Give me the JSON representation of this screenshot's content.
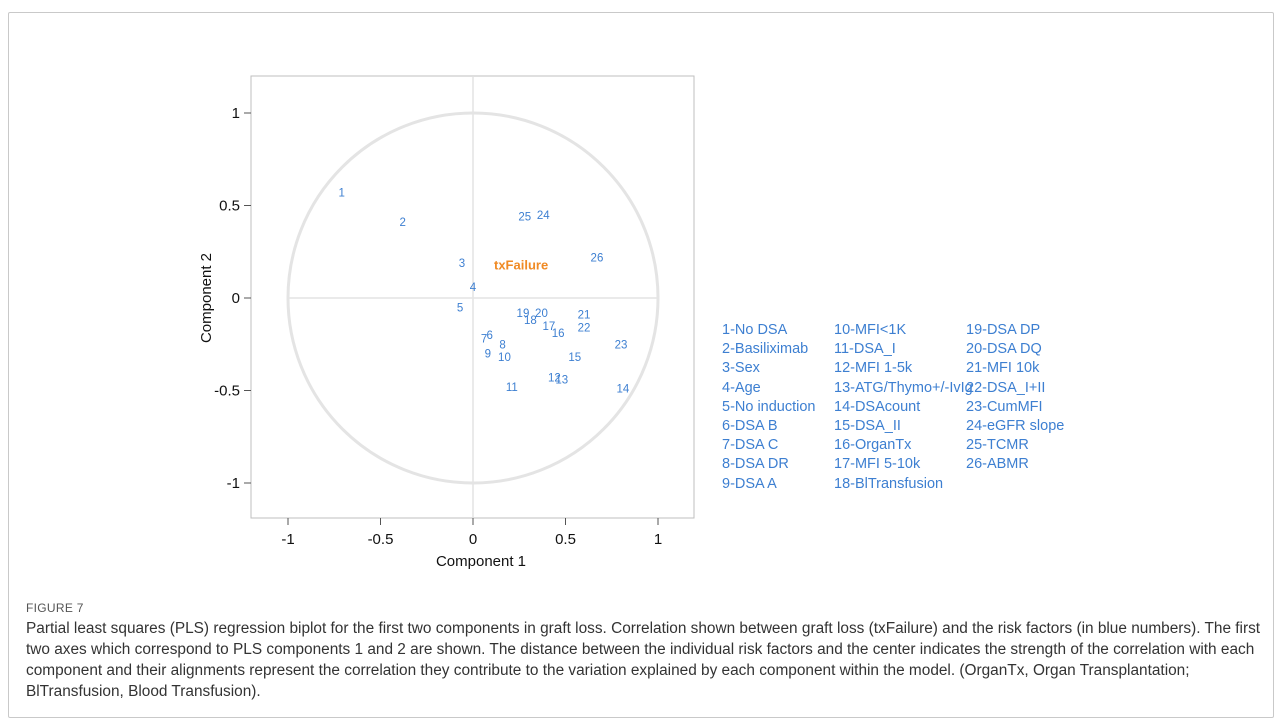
{
  "chart_data": {
    "type": "scatter",
    "xlabel": "Component 1",
    "ylabel": "Component 2",
    "xlim": [
      -1.2,
      1.2
    ],
    "ylim": [
      -1.2,
      1.2
    ],
    "xticks": [
      -1,
      -0.5,
      0,
      0.5,
      1
    ],
    "yticks": [
      -1,
      -0.5,
      0,
      0.5,
      1
    ],
    "tick_labels_x": [
      "-1",
      "-0.5",
      "0",
      "0.5",
      "1"
    ],
    "tick_labels_y": [
      "-1",
      "-0.5",
      "0",
      "0.5",
      "1"
    ],
    "grid": false,
    "reference_circle_radius": 1,
    "point_color": "#3d7fd1",
    "response_color": "#f08a24",
    "points": [
      {
        "label": "1",
        "x": -0.71,
        "y": 0.57
      },
      {
        "label": "2",
        "x": -0.38,
        "y": 0.41
      },
      {
        "label": "3",
        "x": -0.06,
        "y": 0.19
      },
      {
        "label": "4",
        "x": 0.0,
        "y": 0.06
      },
      {
        "label": "5",
        "x": -0.07,
        "y": -0.05
      },
      {
        "label": "6",
        "x": 0.09,
        "y": -0.2
      },
      {
        "label": "7",
        "x": 0.06,
        "y": -0.22
      },
      {
        "label": "8",
        "x": 0.16,
        "y": -0.25
      },
      {
        "label": "9",
        "x": 0.08,
        "y": -0.3
      },
      {
        "label": "10",
        "x": 0.17,
        "y": -0.32
      },
      {
        "label": "11",
        "x": 0.21,
        "y": -0.48
      },
      {
        "label": "12",
        "x": 0.44,
        "y": -0.43
      },
      {
        "label": "13",
        "x": 0.48,
        "y": -0.44
      },
      {
        "label": "14",
        "x": 0.81,
        "y": -0.49
      },
      {
        "label": "15",
        "x": 0.55,
        "y": -0.32
      },
      {
        "label": "16",
        "x": 0.46,
        "y": -0.19
      },
      {
        "label": "17",
        "x": 0.41,
        "y": -0.15
      },
      {
        "label": "18",
        "x": 0.31,
        "y": -0.12
      },
      {
        "label": "19",
        "x": 0.27,
        "y": -0.08
      },
      {
        "label": "20",
        "x": 0.37,
        "y": -0.08
      },
      {
        "label": "21",
        "x": 0.6,
        "y": -0.09
      },
      {
        "label": "22",
        "x": 0.6,
        "y": -0.16
      },
      {
        "label": "23",
        "x": 0.8,
        "y": -0.25
      },
      {
        "label": "24",
        "x": 0.38,
        "y": 0.45
      },
      {
        "label": "25",
        "x": 0.28,
        "y": 0.44
      },
      {
        "label": "26",
        "x": 0.67,
        "y": 0.22
      }
    ],
    "response": {
      "label": "txFailure",
      "x": 0.26,
      "y": 0.18
    },
    "legend": [
      [
        "1-No DSA",
        "2-Basiliximab",
        "3-Sex",
        "4-Age",
        "5-No induction",
        "6-DSA B",
        "7-DSA C",
        "8-DSA DR",
        "9-DSA A"
      ],
      [
        "10-MFI<1K",
        "11-DSA_I",
        "12-MFI 1-5k",
        "13-ATG/Thymo+/-IvIg",
        "14-DSAcount",
        "15-DSA_II",
        "16-OrganTx",
        "17-MFI 5-10k",
        "18-BlTransfusion"
      ],
      [
        "19-DSA DP",
        "20-DSA DQ",
        "21-MFI 10k",
        "22-DSA_I+II",
        "23-CumMFI",
        "24-eGFR slope",
        "25-TCMR",
        "26-ABMR"
      ]
    ]
  },
  "figure_label": "FIGURE 7",
  "caption": "Partial least squares (PLS) regression biplot for the first two components in graft loss. Correlation shown between graft loss (txFailure) and the risk factors (in blue numbers). The first two axes which correspond to PLS components 1 and 2 are shown. The distance between the individual risk factors and the center indicates the strength of the correlation with each component and their alignments represent the correlation they contribute to the variation explained by each component within the model. (OrganTx, Organ Transplantation; BlTransfusion, Blood Transfusion)."
}
